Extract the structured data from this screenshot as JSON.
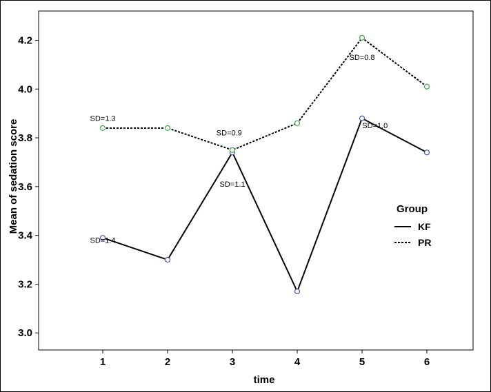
{
  "chart_data": {
    "type": "line",
    "xlabel": "time",
    "ylabel": "Mean of sedation score",
    "categories": [
      1,
      2,
      3,
      4,
      5,
      6
    ],
    "ylim": [
      2.93,
      4.32
    ],
    "yticks": [
      3.0,
      3.2,
      3.4,
      3.6,
      3.8,
      4.0,
      4.2
    ],
    "grid": false,
    "legend": {
      "title": "Group",
      "position": "right"
    },
    "series": [
      {
        "name": "KF",
        "style": "solid",
        "marker_color": "#4a55a8",
        "values": [
          3.39,
          3.3,
          3.74,
          3.17,
          3.88,
          3.74
        ]
      },
      {
        "name": "PR",
        "style": "dotted",
        "marker_color": "#3aa64a",
        "values": [
          3.84,
          3.84,
          3.75,
          3.86,
          4.21,
          4.01
        ]
      }
    ],
    "annotations": [
      {
        "text": "SD=1.3",
        "x": 1,
        "y": 3.87
      },
      {
        "text": "SD=0.9",
        "x": 2.95,
        "y": 3.81
      },
      {
        "text": "SD=1.4",
        "x": 1,
        "y": 3.37
      },
      {
        "text": "SD=1.1",
        "x": 3.0,
        "y": 3.6
      },
      {
        "text": "SD=0.8",
        "x": 5.0,
        "y": 4.12
      },
      {
        "text": "SD=1.0",
        "x": 5.2,
        "y": 3.84
      }
    ]
  }
}
